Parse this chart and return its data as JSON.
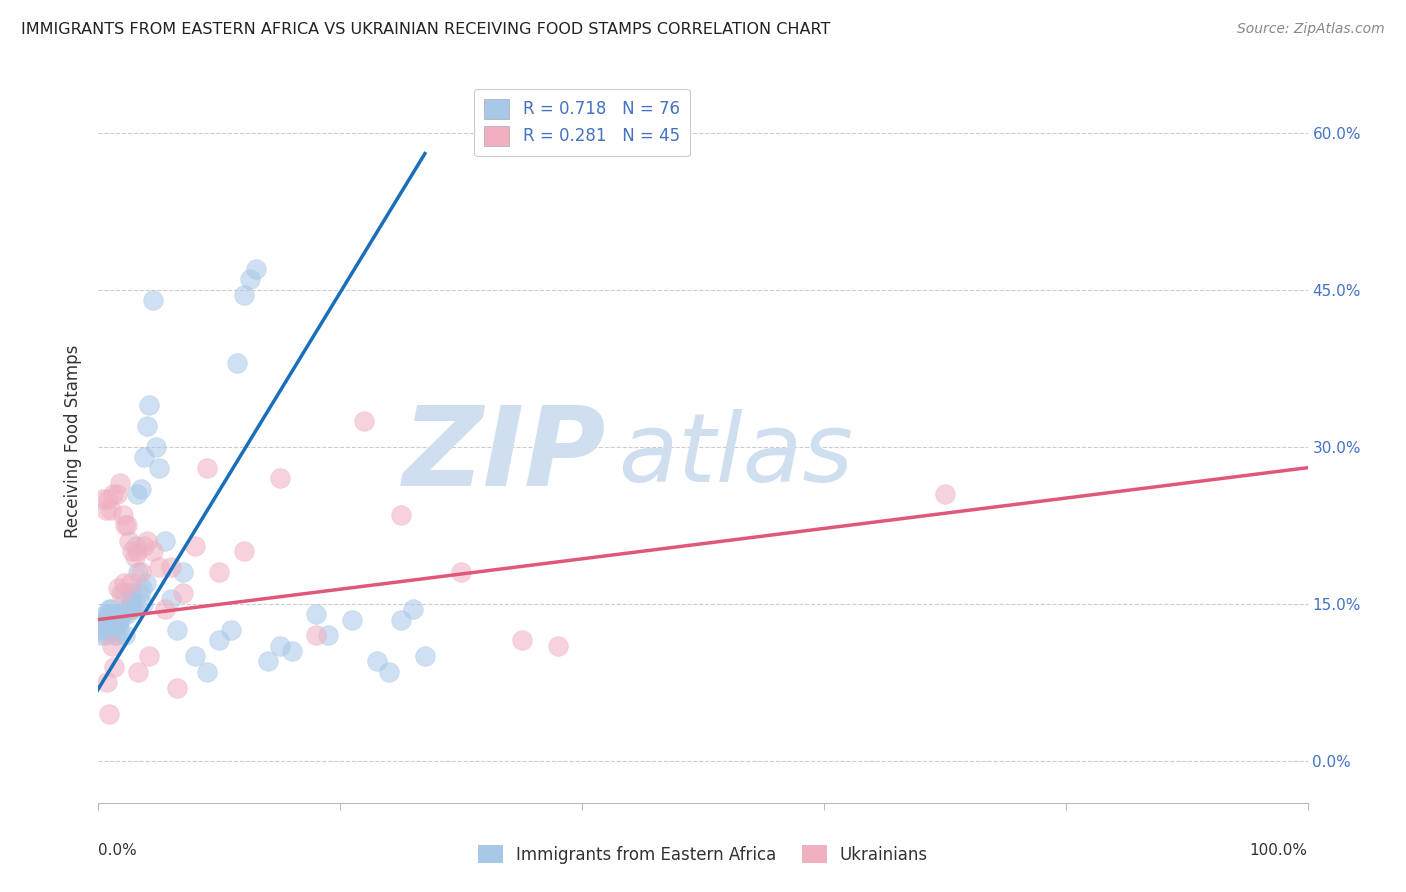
{
  "title": "IMMIGRANTS FROM EASTERN AFRICA VS UKRAINIAN RECEIVING FOOD STAMPS CORRELATION CHART",
  "source": "Source: ZipAtlas.com",
  "ylabel": "Receiving Food Stamps",
  "ytick_vals": [
    0.0,
    15.0,
    30.0,
    45.0,
    60.0
  ],
  "xlim": [
    0,
    100
  ],
  "ylim": [
    -4,
    65
  ],
  "legend1_label": "R = 0.718   N = 76",
  "legend2_label": "R = 0.281   N = 45",
  "color_blue": "#a8c8e8",
  "color_pink": "#f0b0c0",
  "line_blue": "#1a6fbd",
  "line_pink": "#e05878",
  "watermark_zip": "ZIP",
  "watermark_atlas": "atlas",
  "watermark_color": "#d0dff0",
  "blue_scatter_x": [
    0.3,
    0.4,
    0.5,
    0.6,
    0.7,
    0.8,
    0.9,
    1.0,
    1.1,
    1.2,
    1.3,
    1.4,
    1.5,
    1.6,
    1.7,
    1.8,
    1.9,
    2.0,
    2.1,
    2.2,
    2.3,
    2.4,
    2.5,
    2.6,
    2.7,
    2.8,
    2.9,
    3.0,
    3.1,
    3.2,
    3.3,
    3.4,
    3.5,
    3.6,
    3.7,
    3.8,
    3.9,
    4.0,
    4.2,
    4.5,
    4.8,
    5.0,
    5.5,
    6.0,
    6.5,
    7.0,
    8.0,
    9.0,
    10.0,
    11.0,
    11.5,
    12.0,
    12.5,
    13.0,
    14.0,
    15.0,
    16.0,
    18.0,
    19.0,
    21.0,
    23.0,
    24.0,
    25.0,
    26.0,
    27.0,
    0.2,
    0.35,
    0.45,
    0.55,
    0.65,
    0.75,
    0.85,
    0.95,
    1.05,
    1.15,
    1.25
  ],
  "blue_scatter_y": [
    13.0,
    13.5,
    12.5,
    14.0,
    13.5,
    13.0,
    14.5,
    13.0,
    14.0,
    13.5,
    14.0,
    12.0,
    12.0,
    13.0,
    12.5,
    13.5,
    14.0,
    14.0,
    16.0,
    12.0,
    14.5,
    14.0,
    16.0,
    14.5,
    15.0,
    16.0,
    14.5,
    15.0,
    20.5,
    25.5,
    18.0,
    16.0,
    26.0,
    16.5,
    15.0,
    29.0,
    17.0,
    32.0,
    34.0,
    44.0,
    30.0,
    28.0,
    21.0,
    15.5,
    12.5,
    18.0,
    10.0,
    8.5,
    11.5,
    12.5,
    38.0,
    44.5,
    46.0,
    47.0,
    9.5,
    11.0,
    10.5,
    14.0,
    12.0,
    13.5,
    9.5,
    8.5,
    13.5,
    14.5,
    10.0,
    12.0,
    12.5,
    13.0,
    13.0,
    12.0,
    13.5,
    14.0,
    13.0,
    14.5,
    12.5,
    13.0
  ],
  "pink_scatter_x": [
    0.4,
    0.6,
    0.8,
    1.0,
    1.2,
    1.5,
    1.8,
    2.0,
    2.2,
    2.5,
    2.8,
    3.0,
    3.2,
    3.5,
    3.8,
    4.0,
    4.5,
    5.0,
    5.5,
    6.0,
    7.0,
    8.0,
    9.0,
    10.0,
    12.0,
    15.0,
    18.0,
    22.0,
    25.0,
    30.0,
    35.0,
    38.0,
    0.7,
    0.9,
    1.1,
    1.3,
    1.6,
    1.9,
    2.1,
    2.4,
    2.7,
    3.3,
    4.2,
    6.5,
    70.0
  ],
  "pink_scatter_y": [
    25.0,
    24.0,
    25.0,
    24.0,
    25.5,
    25.5,
    26.5,
    23.5,
    22.5,
    21.0,
    20.0,
    19.5,
    20.0,
    18.0,
    20.5,
    21.0,
    20.0,
    18.5,
    14.5,
    18.5,
    16.0,
    20.5,
    28.0,
    18.0,
    20.0,
    27.0,
    12.0,
    32.5,
    23.5,
    18.0,
    11.5,
    11.0,
    7.5,
    4.5,
    11.0,
    9.0,
    16.5,
    16.0,
    17.0,
    22.5,
    17.0,
    8.5,
    10.0,
    7.0,
    25.5
  ],
  "blue_line_x": [
    -1,
    27
  ],
  "blue_line_y": [
    5.0,
    58.0
  ],
  "pink_line_x": [
    0,
    100
  ],
  "pink_line_y": [
    13.5,
    28.0
  ]
}
